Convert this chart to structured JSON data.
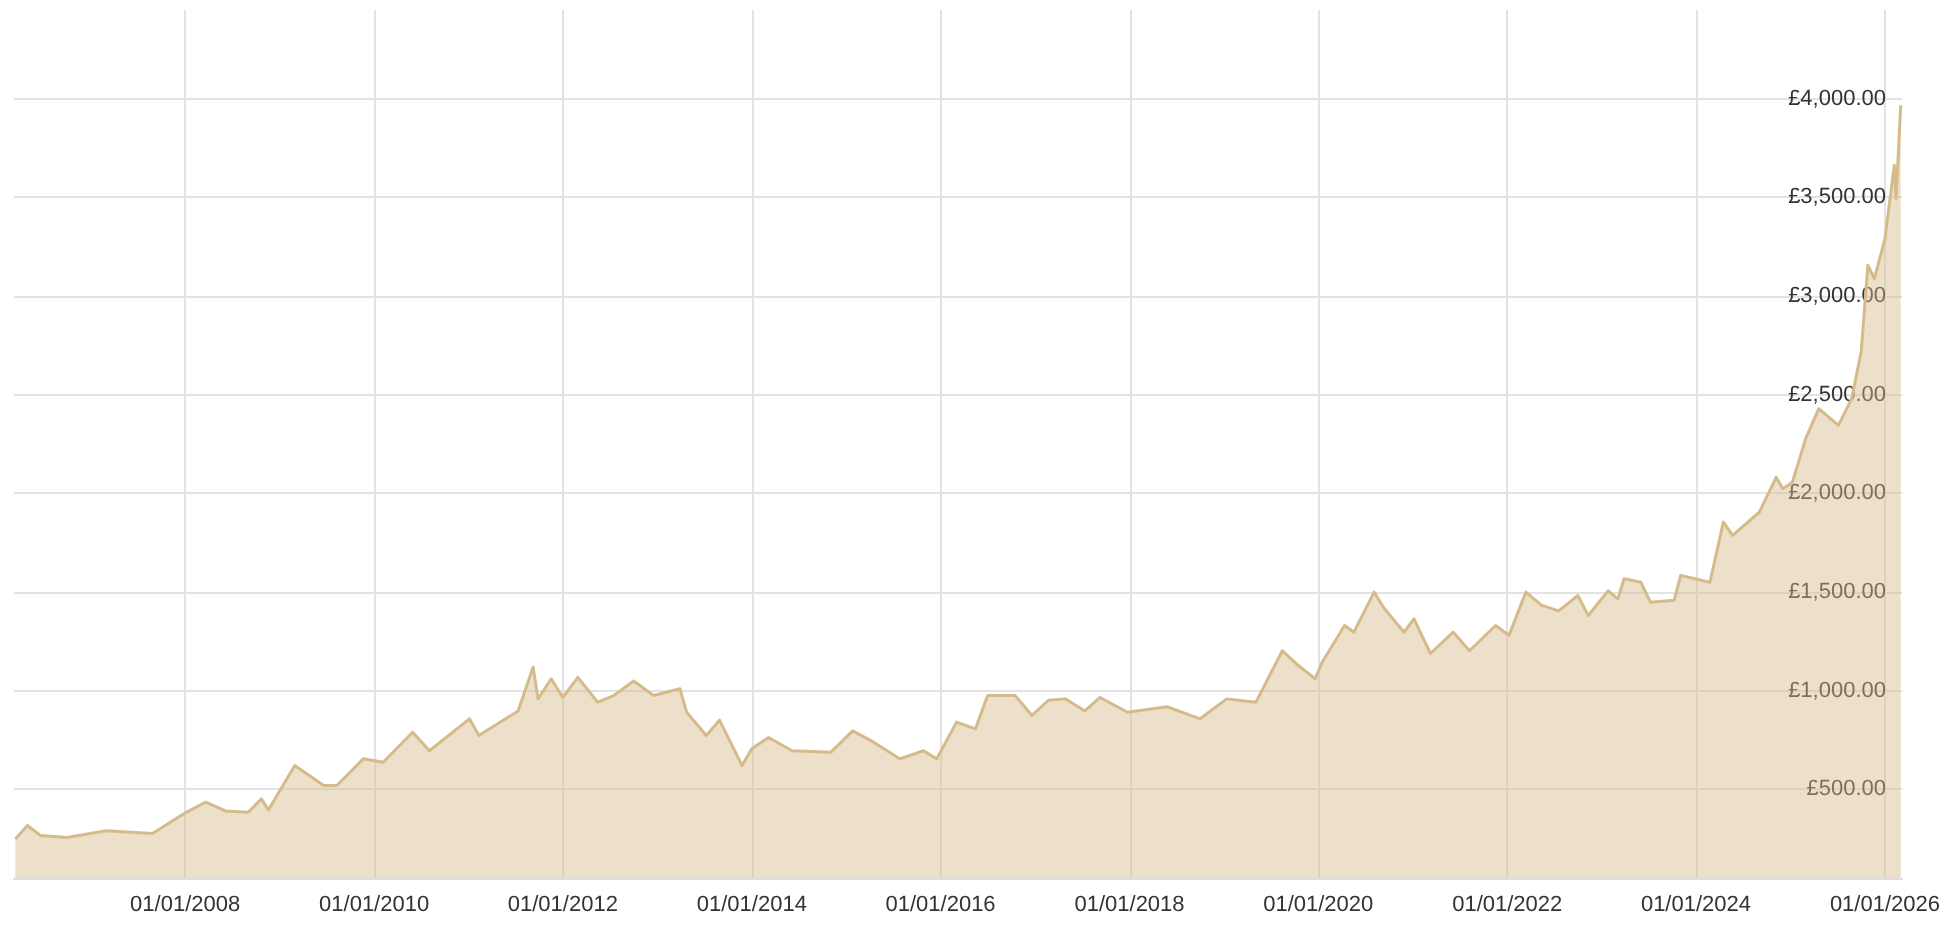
{
  "chart_data": {
    "type": "area",
    "x": [
      "2006-03-15",
      "2006-05-01",
      "2006-06-20",
      "2006-10-01",
      "2007-03-01",
      "2007-08-28",
      "2008-01-05",
      "2008-03-20",
      "2008-06-05",
      "2008-09-01",
      "2008-10-22",
      "2008-11-18",
      "2009-02-28",
      "2009-06-20",
      "2009-08-10",
      "2009-11-20",
      "2010-02-05",
      "2010-05-30",
      "2010-08-03",
      "2011-01-05",
      "2011-02-10",
      "2011-07-12",
      "2011-09-08",
      "2011-09-27",
      "2011-11-17",
      "2012-01-01",
      "2012-02-28",
      "2012-05-15",
      "2012-07-16",
      "2012-10-01",
      "2012-12-17",
      "2013-03-29",
      "2013-04-24",
      "2013-07-09",
      "2013-08-29",
      "2013-11-24",
      "2014-01-01",
      "2014-03-07",
      "2014-06-06",
      "2014-11-03",
      "2015-01-26",
      "2015-04-05",
      "2015-07-27",
      "2015-10-27",
      "2015-12-17",
      "2016-03-03",
      "2016-05-15",
      "2016-07-01",
      "2016-10-15",
      "2016-12-20",
      "2017-02-21",
      "2017-04-28",
      "2017-07-12",
      "2017-09-09",
      "2017-12-24",
      "2018-05-26",
      "2018-10-01",
      "2019-01-12",
      "2019-05-05",
      "2019-08-15",
      "2019-10-16",
      "2019-12-20",
      "2020-01-16",
      "2020-04-12",
      "2020-05-18",
      "2020-08-04",
      "2020-09-13",
      "2020-11-28",
      "2021-01-05",
      "2021-03-10",
      "2021-06-06",
      "2021-08-08",
      "2021-11-17",
      "2022-01-08",
      "2022-03-14",
      "2022-05-15",
      "2022-07-19",
      "2022-10-01",
      "2022-11-10",
      "2023-01-27",
      "2023-03-05",
      "2023-03-29",
      "2023-06-02",
      "2023-07-09",
      "2023-10-09",
      "2023-11-03",
      "2024-02-24",
      "2024-04-16",
      "2024-05-22",
      "2024-09-02",
      "2024-11-06",
      "2024-12-02",
      "2025-01-08",
      "2025-02-28",
      "2025-04-20",
      "2025-07-05",
      "2025-08-25",
      "2025-10-01",
      "2025-10-27",
      "2025-11-21",
      "2026-01-01",
      "2026-02-06",
      "2026-02-13",
      "2026-03-03"
    ],
    "series": [
      {
        "color": "#d6bb8a",
        "values": [
          248,
          316,
          266,
          255,
          289,
          276,
          383,
          434,
          390,
          383,
          451,
          395,
          620,
          519,
          519,
          654,
          637,
          789,
          695,
          857,
          772,
          897,
          1120,
          958,
          1060,
          965,
          1067,
          941,
          975,
          1049,
          975,
          1009,
          890,
          772,
          850,
          620,
          705,
          762,
          695,
          688,
          796,
          748,
          654,
          695,
          654,
          840,
          806,
          975,
          975,
          874,
          951,
          958,
          897,
          965,
          890,
          918,
          857,
          958,
          941,
          1202,
          1127,
          1060,
          1144,
          1330,
          1296,
          1499,
          1415,
          1296,
          1364,
          1188,
          1296,
          1202,
          1330,
          1280,
          1499,
          1432,
          1404,
          1482,
          1381,
          1506,
          1465,
          1567,
          1549,
          1448,
          1458,
          1584,
          1549,
          1854,
          1787,
          1904,
          2081,
          2023,
          2056,
          2276,
          2429,
          2344,
          2479,
          2716,
          3156,
          3088,
          3290,
          3663,
          3493,
          3967
        ]
      }
    ],
    "xlim": [
      "2006-03-10",
      "2026-03-08"
    ],
    "xticks": [
      {
        "value": "2008-01-01",
        "label": "01/01/2008"
      },
      {
        "value": "2010-01-01",
        "label": "01/01/2010"
      },
      {
        "value": "2012-01-01",
        "label": "01/01/2012"
      },
      {
        "value": "2014-01-01",
        "label": "01/01/2014"
      },
      {
        "value": "2016-01-01",
        "label": "01/01/2016"
      },
      {
        "value": "2018-01-01",
        "label": "01/01/2018"
      },
      {
        "value": "2020-01-01",
        "label": "01/01/2020"
      },
      {
        "value": "2022-01-01",
        "label": "01/01/2022"
      },
      {
        "value": "2024-01-01",
        "label": "01/01/2024"
      },
      {
        "value": "2026-01-01",
        "label": "01/01/2026"
      }
    ],
    "ylim": [
      50,
      4450
    ],
    "yticks": [
      {
        "value": 500,
        "label": "£500.00"
      },
      {
        "value": 1000,
        "label": "£1,000.00"
      },
      {
        "value": 1500,
        "label": "£1,500.00"
      },
      {
        "value": 2000,
        "label": "£2,000.00"
      },
      {
        "value": 2500,
        "label": "£2,500.00"
      },
      {
        "value": 3000,
        "label": "£3,000.00"
      },
      {
        "value": 3500,
        "label": "£3,500.00"
      },
      {
        "value": 4000,
        "label": "£4,000.00"
      }
    ],
    "grid": true,
    "marker": "none"
  }
}
